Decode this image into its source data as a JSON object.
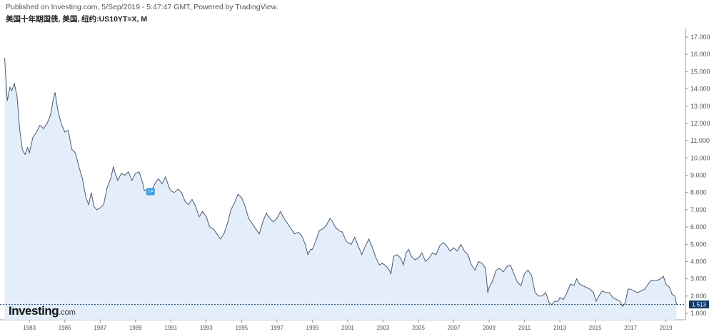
{
  "header": {
    "published": "Published on Investing.com, 5/Sep/2019 - 5:47:47 GMT, Powered by TradingView.",
    "symbol": "美国十年期国债, 美国, 纽约:US10YT=X, M"
  },
  "logo": {
    "main": "Investing",
    "suffix": ".com"
  },
  "marker": {
    "label": "I P"
  },
  "colors": {
    "line": "#4a5a70",
    "fill": "#e4eefa",
    "last_tag": "#0f3c68",
    "marker": "#3ba0e0"
  },
  "chart_data": {
    "type": "area",
    "title": "",
    "xlabel": "",
    "ylabel": "",
    "ylim": [
      1.0,
      17.0
    ],
    "xlim": [
      1981.5,
      2019.9
    ],
    "y_ticks": [
      "17.000",
      "16.000",
      "15.000",
      "14.000",
      "13.000",
      "12.000",
      "11.000",
      "10.000",
      "9.000",
      "8.000",
      "7.000",
      "6.000",
      "5.000",
      "4.000",
      "3.000",
      "2.000",
      "1.000"
    ],
    "x_ticks": [
      "1983",
      "1985",
      "1987",
      "1989",
      "1991",
      "1993",
      "1995",
      "1997",
      "1999",
      "2001",
      "2003",
      "2005",
      "2007",
      "2009",
      "2011",
      "2013",
      "2015",
      "2017",
      "2019"
    ],
    "last_value": "1.513",
    "last_value_num": 1.513,
    "series": [
      {
        "values": [
          [
            1981.6,
            15.8
          ],
          [
            1981.75,
            13.3
          ],
          [
            1981.9,
            14.1
          ],
          [
            1982.0,
            13.9
          ],
          [
            1982.15,
            14.3
          ],
          [
            1982.3,
            13.6
          ],
          [
            1982.45,
            11.7
          ],
          [
            1982.6,
            10.5
          ],
          [
            1982.75,
            10.2
          ],
          [
            1982.9,
            10.6
          ],
          [
            1983.0,
            10.3
          ],
          [
            1983.2,
            11.2
          ],
          [
            1983.4,
            11.5
          ],
          [
            1983.6,
            11.9
          ],
          [
            1983.8,
            11.7
          ],
          [
            1984.0,
            12.0
          ],
          [
            1984.2,
            12.5
          ],
          [
            1984.35,
            13.4
          ],
          [
            1984.45,
            13.8
          ],
          [
            1984.6,
            12.8
          ],
          [
            1984.8,
            12.0
          ],
          [
            1985.0,
            11.5
          ],
          [
            1985.2,
            11.6
          ],
          [
            1985.4,
            10.5
          ],
          [
            1985.6,
            10.3
          ],
          [
            1985.8,
            9.5
          ],
          [
            1986.0,
            8.8
          ],
          [
            1986.2,
            7.7
          ],
          [
            1986.35,
            7.3
          ],
          [
            1986.5,
            8.0
          ],
          [
            1986.65,
            7.2
          ],
          [
            1986.8,
            7.0
          ],
          [
            1987.0,
            7.1
          ],
          [
            1987.2,
            7.3
          ],
          [
            1987.4,
            8.3
          ],
          [
            1987.6,
            8.8
          ],
          [
            1987.75,
            9.5
          ],
          [
            1987.85,
            9.1
          ],
          [
            1988.0,
            8.7
          ],
          [
            1988.2,
            9.1
          ],
          [
            1988.4,
            9.0
          ],
          [
            1988.6,
            9.2
          ],
          [
            1988.8,
            8.7
          ],
          [
            1989.0,
            9.1
          ],
          [
            1989.2,
            9.2
          ],
          [
            1989.4,
            8.6
          ],
          [
            1989.5,
            8.1
          ],
          [
            1989.65,
            8.2
          ],
          [
            1989.8,
            7.9
          ],
          [
            1990.0,
            8.3
          ],
          [
            1990.15,
            8.6
          ],
          [
            1990.3,
            8.8
          ],
          [
            1990.5,
            8.5
          ],
          [
            1990.7,
            8.9
          ],
          [
            1990.9,
            8.3
          ],
          [
            1991.0,
            8.1
          ],
          [
            1991.2,
            8.0
          ],
          [
            1991.4,
            8.2
          ],
          [
            1991.6,
            8.0
          ],
          [
            1991.8,
            7.5
          ],
          [
            1992.0,
            7.3
          ],
          [
            1992.2,
            7.6
          ],
          [
            1992.4,
            7.2
          ],
          [
            1992.6,
            6.6
          ],
          [
            1992.8,
            6.9
          ],
          [
            1993.0,
            6.6
          ],
          [
            1993.2,
            6.0
          ],
          [
            1993.4,
            5.9
          ],
          [
            1993.6,
            5.6
          ],
          [
            1993.8,
            5.3
          ],
          [
            1994.0,
            5.6
          ],
          [
            1994.2,
            6.2
          ],
          [
            1994.4,
            7.0
          ],
          [
            1994.6,
            7.4
          ],
          [
            1994.8,
            7.9
          ],
          [
            1995.0,
            7.7
          ],
          [
            1995.2,
            7.2
          ],
          [
            1995.4,
            6.5
          ],
          [
            1995.6,
            6.2
          ],
          [
            1995.8,
            5.9
          ],
          [
            1996.0,
            5.6
          ],
          [
            1996.2,
            6.3
          ],
          [
            1996.4,
            6.8
          ],
          [
            1996.6,
            6.5
          ],
          [
            1996.8,
            6.3
          ],
          [
            1997.0,
            6.5
          ],
          [
            1997.2,
            6.9
          ],
          [
            1997.4,
            6.5
          ],
          [
            1997.6,
            6.2
          ],
          [
            1997.8,
            5.9
          ],
          [
            1998.0,
            5.6
          ],
          [
            1998.2,
            5.7
          ],
          [
            1998.4,
            5.5
          ],
          [
            1998.6,
            5.0
          ],
          [
            1998.75,
            4.4
          ],
          [
            1998.9,
            4.7
          ],
          [
            1999.0,
            4.7
          ],
          [
            1999.2,
            5.2
          ],
          [
            1999.4,
            5.8
          ],
          [
            1999.6,
            5.9
          ],
          [
            1999.8,
            6.1
          ],
          [
            2000.0,
            6.5
          ],
          [
            2000.15,
            6.3
          ],
          [
            2000.3,
            6.0
          ],
          [
            2000.5,
            5.8
          ],
          [
            2000.7,
            5.7
          ],
          [
            2000.9,
            5.2
          ],
          [
            2001.0,
            5.1
          ],
          [
            2001.2,
            5.0
          ],
          [
            2001.4,
            5.4
          ],
          [
            2001.6,
            4.9
          ],
          [
            2001.8,
            4.4
          ],
          [
            2002.0,
            4.9
          ],
          [
            2002.2,
            5.3
          ],
          [
            2002.4,
            4.8
          ],
          [
            2002.6,
            4.2
          ],
          [
            2002.8,
            3.8
          ],
          [
            2002.95,
            3.9
          ],
          [
            2003.1,
            3.8
          ],
          [
            2003.3,
            3.6
          ],
          [
            2003.45,
            3.3
          ],
          [
            2003.6,
            4.3
          ],
          [
            2003.8,
            4.4
          ],
          [
            2004.0,
            4.2
          ],
          [
            2004.15,
            3.8
          ],
          [
            2004.3,
            4.5
          ],
          [
            2004.45,
            4.7
          ],
          [
            2004.6,
            4.3
          ],
          [
            2004.8,
            4.1
          ],
          [
            2005.0,
            4.2
          ],
          [
            2005.2,
            4.5
          ],
          [
            2005.4,
            4.0
          ],
          [
            2005.6,
            4.2
          ],
          [
            2005.8,
            4.5
          ],
          [
            2006.0,
            4.4
          ],
          [
            2006.2,
            4.9
          ],
          [
            2006.4,
            5.1
          ],
          [
            2006.6,
            4.9
          ],
          [
            2006.8,
            4.6
          ],
          [
            2007.0,
            4.8
          ],
          [
            2007.2,
            4.6
          ],
          [
            2007.4,
            5.0
          ],
          [
            2007.6,
            4.6
          ],
          [
            2007.8,
            4.4
          ],
          [
            2008.0,
            3.8
          ],
          [
            2008.2,
            3.5
          ],
          [
            2008.4,
            4.0
          ],
          [
            2008.6,
            3.9
          ],
          [
            2008.8,
            3.6
          ],
          [
            2008.92,
            2.2
          ],
          [
            2009.0,
            2.5
          ],
          [
            2009.2,
            2.9
          ],
          [
            2009.4,
            3.5
          ],
          [
            2009.6,
            3.6
          ],
          [
            2009.8,
            3.4
          ],
          [
            2010.0,
            3.7
          ],
          [
            2010.2,
            3.8
          ],
          [
            2010.4,
            3.3
          ],
          [
            2010.6,
            2.8
          ],
          [
            2010.8,
            2.6
          ],
          [
            2011.0,
            3.3
          ],
          [
            2011.2,
            3.5
          ],
          [
            2011.4,
            3.2
          ],
          [
            2011.6,
            2.2
          ],
          [
            2011.8,
            2.0
          ],
          [
            2012.0,
            2.0
          ],
          [
            2012.2,
            2.2
          ],
          [
            2012.4,
            1.6
          ],
          [
            2012.55,
            1.5
          ],
          [
            2012.7,
            1.7
          ],
          [
            2012.9,
            1.7
          ],
          [
            2013.0,
            1.9
          ],
          [
            2013.2,
            1.8
          ],
          [
            2013.4,
            2.2
          ],
          [
            2013.6,
            2.7
          ],
          [
            2013.8,
            2.6
          ],
          [
            2013.95,
            3.0
          ],
          [
            2014.1,
            2.7
          ],
          [
            2014.3,
            2.6
          ],
          [
            2014.5,
            2.5
          ],
          [
            2014.7,
            2.4
          ],
          [
            2014.9,
            2.2
          ],
          [
            2015.05,
            1.7
          ],
          [
            2015.2,
            2.0
          ],
          [
            2015.4,
            2.3
          ],
          [
            2015.6,
            2.2
          ],
          [
            2015.8,
            2.2
          ],
          [
            2016.0,
            1.9
          ],
          [
            2016.2,
            1.8
          ],
          [
            2016.4,
            1.7
          ],
          [
            2016.55,
            1.4
          ],
          [
            2016.7,
            1.6
          ],
          [
            2016.85,
            2.4
          ],
          [
            2017.0,
            2.4
          ],
          [
            2017.2,
            2.3
          ],
          [
            2017.4,
            2.2
          ],
          [
            2017.6,
            2.3
          ],
          [
            2017.8,
            2.4
          ],
          [
            2018.0,
            2.7
          ],
          [
            2018.15,
            2.9
          ],
          [
            2018.3,
            2.9
          ],
          [
            2018.5,
            2.9
          ],
          [
            2018.7,
            3.0
          ],
          [
            2018.85,
            3.15
          ],
          [
            2019.0,
            2.7
          ],
          [
            2019.2,
            2.5
          ],
          [
            2019.35,
            2.1
          ],
          [
            2019.5,
            2.0
          ],
          [
            2019.6,
            1.5
          ]
        ]
      }
    ]
  }
}
